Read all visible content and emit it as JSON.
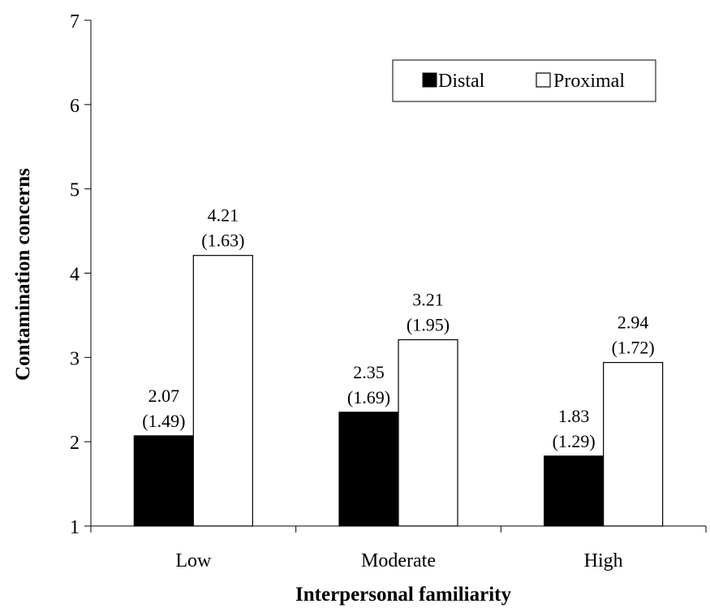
{
  "chart_data": {
    "type": "bar",
    "xlabel": "Interpersonal familiarity",
    "ylabel": "Contamination concerns",
    "ylim": [
      1,
      7
    ],
    "yticks": [
      "1",
      "2",
      "3",
      "4",
      "5",
      "6",
      "7"
    ],
    "grid": false,
    "legend_position": "top-right",
    "categories": [
      "Low",
      "Moderate",
      "High"
    ],
    "series": [
      {
        "name": "Distal",
        "color": "#000000",
        "values": [
          2.07,
          2.35,
          1.83
        ],
        "value_labels": [
          "2.07",
          "2.35",
          "1.83"
        ],
        "sd_labels": [
          "(1.49)",
          "(1.69)",
          "(1.29)"
        ]
      },
      {
        "name": "Proximal",
        "color": "#ffffff",
        "values": [
          4.21,
          3.21,
          2.94
        ],
        "value_labels": [
          "4.21",
          "3.21",
          "2.94"
        ],
        "sd_labels": [
          "(1.63)",
          "(1.95)",
          "(1.72)"
        ]
      }
    ]
  }
}
